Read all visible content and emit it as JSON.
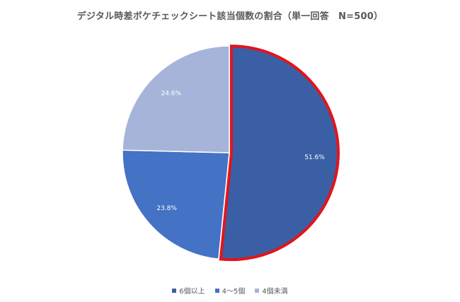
{
  "chart_data": {
    "type": "pie",
    "title": "デジタル時差ボケチェックシート該当個数の割合（単一回答　N=500）",
    "start_angle_deg": 0,
    "direction": "clockwise",
    "slices": [
      {
        "name": "6個以上",
        "value": 51.6,
        "label": "51.6%",
        "color": "#3A5FA4",
        "highlighted": true
      },
      {
        "name": "4～5個",
        "value": 23.8,
        "label": "23.8%",
        "color": "#4472C4",
        "highlighted": false
      },
      {
        "name": "4個未満",
        "value": 24.6,
        "label": "24.6%",
        "color": "#A5B4D8",
        "highlighted": false
      }
    ],
    "highlight_color": "#E3141B",
    "legend_position": "bottom"
  }
}
